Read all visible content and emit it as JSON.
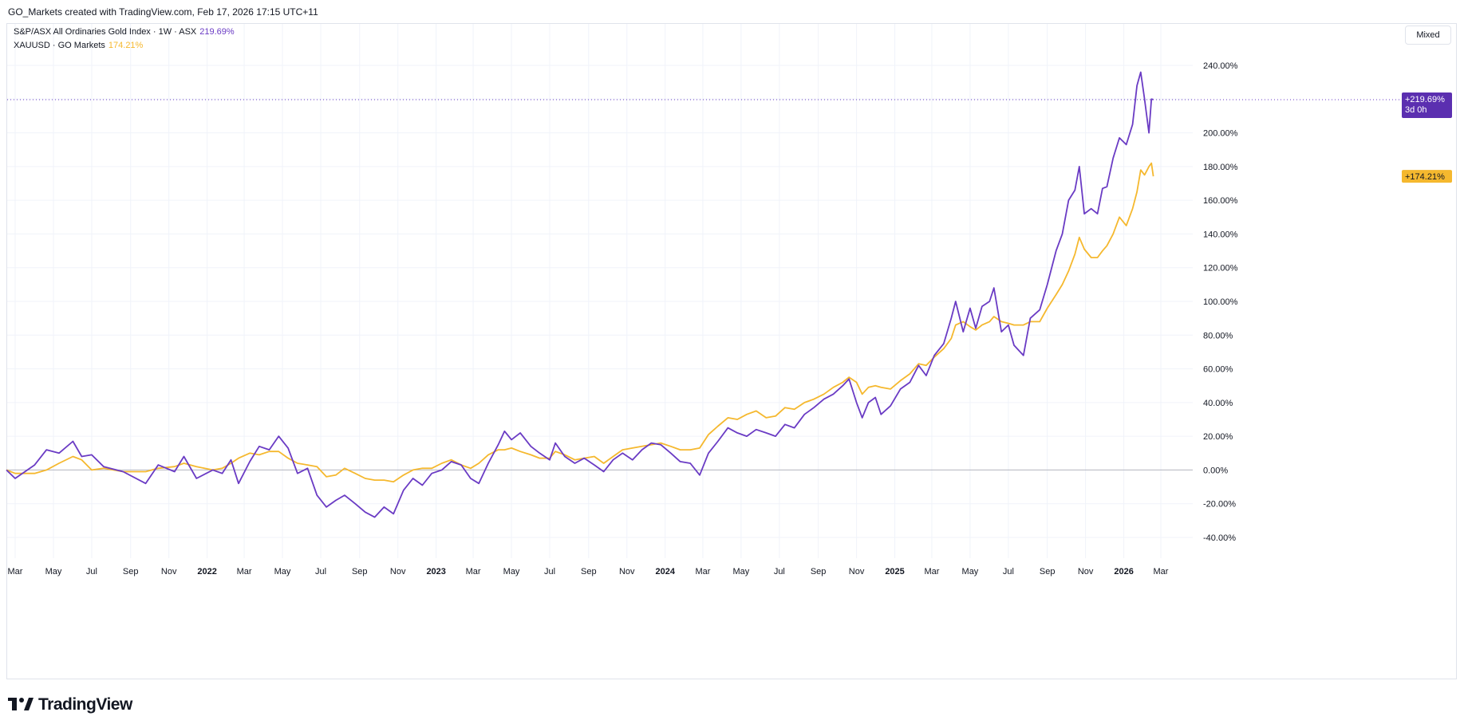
{
  "header": {
    "text": "GO_Markets created with TradingView.com, Feb 17, 2026 17:15 UTC+11"
  },
  "legend": [
    {
      "label": "S&P/ASX All Ordinaries Gold Index · 1W · ASX",
      "value": "219.69%",
      "color": "#6a3bc4"
    },
    {
      "label": "XAUUSD · GO Markets",
      "value": "174.21%",
      "color": "#f5b82e"
    }
  ],
  "scale_mode": "Mixed",
  "price_labels": {
    "gold_index": {
      "value": "+219.69%",
      "sub": "3d 0h"
    },
    "xauusd": {
      "value": "+174.21%"
    }
  },
  "brand": "TradingView",
  "chart_data": {
    "type": "line",
    "x_axis_type": "date",
    "x_ticks": [
      "Mar",
      "May",
      "Jul",
      "Sep",
      "Nov",
      "2022",
      "Mar",
      "May",
      "Jul",
      "Sep",
      "Nov",
      "2023",
      "Mar",
      "May",
      "Jul",
      "Sep",
      "Nov",
      "2024",
      "Mar",
      "May",
      "Jul",
      "Sep",
      "Nov",
      "2025",
      "Mar",
      "May",
      "Jul",
      "Sep",
      "Nov",
      "2026",
      "Mar"
    ],
    "x_tick_dates": [
      "2021-03-01",
      "2021-05-01",
      "2021-07-01",
      "2021-09-01",
      "2021-11-01",
      "2022-01-01",
      "2022-03-01",
      "2022-05-01",
      "2022-07-01",
      "2022-09-01",
      "2022-11-01",
      "2023-01-01",
      "2023-03-01",
      "2023-05-01",
      "2023-07-01",
      "2023-09-01",
      "2023-11-01",
      "2024-01-01",
      "2024-03-01",
      "2024-05-01",
      "2024-07-01",
      "2024-09-01",
      "2024-11-01",
      "2025-01-01",
      "2025-03-01",
      "2025-05-01",
      "2025-07-01",
      "2025-09-01",
      "2025-11-01",
      "2026-01-01",
      "2026-03-01"
    ],
    "bold_ticks": [
      "2022",
      "2023",
      "2024",
      "2025",
      "2026"
    ],
    "y_ticks": [
      "240.00%",
      "200.00%",
      "180.00%",
      "160.00%",
      "140.00%",
      "120.00%",
      "100.00%",
      "80.00%",
      "60.00%",
      "40.00%",
      "20.00%",
      "0.00%",
      "-20.00%",
      "-40.00%"
    ],
    "y_tick_values": [
      240,
      200,
      180,
      160,
      140,
      120,
      100,
      80,
      60,
      40,
      20,
      0,
      -20,
      -40
    ],
    "ylim": [
      -40,
      240
    ],
    "y_unit": "%",
    "grid": true,
    "legend_position": "top-left",
    "series": [
      {
        "name": "S&P/ASX All Ordinaries Gold Index · 1W · ASX",
        "color": "#6a3bc4",
        "points": [
          [
            "2021-02-15",
            0
          ],
          [
            "2021-03-01",
            -5
          ],
          [
            "2021-04-01",
            3
          ],
          [
            "2021-04-20",
            12
          ],
          [
            "2021-05-10",
            10
          ],
          [
            "2021-06-01",
            17
          ],
          [
            "2021-06-15",
            8
          ],
          [
            "2021-07-01",
            9
          ],
          [
            "2021-07-20",
            2
          ],
          [
            "2021-08-20",
            -1
          ],
          [
            "2021-09-25",
            -8
          ],
          [
            "2021-10-15",
            3
          ],
          [
            "2021-11-10",
            -1
          ],
          [
            "2021-11-25",
            8
          ],
          [
            "2021-12-15",
            -5
          ],
          [
            "2022-01-10",
            0
          ],
          [
            "2022-01-25",
            -2
          ],
          [
            "2022-02-08",
            6
          ],
          [
            "2022-02-20",
            -8
          ],
          [
            "2022-03-10",
            5
          ],
          [
            "2022-03-25",
            14
          ],
          [
            "2022-04-10",
            12
          ],
          [
            "2022-04-25",
            20
          ],
          [
            "2022-05-10",
            13
          ],
          [
            "2022-05-25",
            -2
          ],
          [
            "2022-06-10",
            1
          ],
          [
            "2022-06-25",
            -15
          ],
          [
            "2022-07-10",
            -22
          ],
          [
            "2022-07-25",
            -18
          ],
          [
            "2022-08-08",
            -15
          ],
          [
            "2022-08-25",
            -20
          ],
          [
            "2022-09-10",
            -25
          ],
          [
            "2022-09-25",
            -28
          ],
          [
            "2022-10-10",
            -22
          ],
          [
            "2022-10-25",
            -26
          ],
          [
            "2022-11-10",
            -12
          ],
          [
            "2022-11-25",
            -5
          ],
          [
            "2022-12-10",
            -9
          ],
          [
            "2022-12-25",
            -2
          ],
          [
            "2023-01-10",
            0
          ],
          [
            "2023-01-25",
            5
          ],
          [
            "2023-02-10",
            3
          ],
          [
            "2023-02-25",
            -5
          ],
          [
            "2023-03-10",
            -8
          ],
          [
            "2023-03-25",
            4
          ],
          [
            "2023-04-10",
            15
          ],
          [
            "2023-04-20",
            23
          ],
          [
            "2023-05-01",
            18
          ],
          [
            "2023-05-15",
            22
          ],
          [
            "2023-06-01",
            14
          ],
          [
            "2023-06-15",
            10
          ],
          [
            "2023-07-01",
            6
          ],
          [
            "2023-07-10",
            16
          ],
          [
            "2023-07-25",
            8
          ],
          [
            "2023-08-10",
            4
          ],
          [
            "2023-08-25",
            7
          ],
          [
            "2023-09-10",
            3
          ],
          [
            "2023-09-25",
            -1
          ],
          [
            "2023-10-10",
            6
          ],
          [
            "2023-10-25",
            10
          ],
          [
            "2023-11-10",
            6
          ],
          [
            "2023-11-25",
            12
          ],
          [
            "2023-12-10",
            16
          ],
          [
            "2023-12-25",
            15
          ],
          [
            "2024-01-10",
            10
          ],
          [
            "2024-01-25",
            5
          ],
          [
            "2024-02-10",
            4
          ],
          [
            "2024-02-25",
            -3
          ],
          [
            "2024-03-10",
            10
          ],
          [
            "2024-03-25",
            17
          ],
          [
            "2024-04-10",
            25
          ],
          [
            "2024-04-25",
            22
          ],
          [
            "2024-05-10",
            20
          ],
          [
            "2024-05-25",
            24
          ],
          [
            "2024-06-10",
            22
          ],
          [
            "2024-06-25",
            20
          ],
          [
            "2024-07-10",
            27
          ],
          [
            "2024-07-25",
            25
          ],
          [
            "2024-08-10",
            33
          ],
          [
            "2024-08-25",
            37
          ],
          [
            "2024-09-10",
            42
          ],
          [
            "2024-09-25",
            45
          ],
          [
            "2024-10-10",
            50
          ],
          [
            "2024-10-20",
            54
          ],
          [
            "2024-11-01",
            40
          ],
          [
            "2024-11-10",
            31
          ],
          [
            "2024-11-20",
            40
          ],
          [
            "2024-12-01",
            43
          ],
          [
            "2024-12-10",
            33
          ],
          [
            "2024-12-25",
            38
          ],
          [
            "2025-01-10",
            48
          ],
          [
            "2025-01-25",
            52
          ],
          [
            "2025-02-08",
            62
          ],
          [
            "2025-02-20",
            56
          ],
          [
            "2025-03-05",
            68
          ],
          [
            "2025-03-20",
            75
          ],
          [
            "2025-04-01",
            90
          ],
          [
            "2025-04-08",
            100
          ],
          [
            "2025-04-20",
            82
          ],
          [
            "2025-05-01",
            96
          ],
          [
            "2025-05-10",
            84
          ],
          [
            "2025-05-20",
            97
          ],
          [
            "2025-06-01",
            100
          ],
          [
            "2025-06-08",
            108
          ],
          [
            "2025-06-20",
            82
          ],
          [
            "2025-07-01",
            86
          ],
          [
            "2025-07-10",
            74
          ],
          [
            "2025-07-25",
            68
          ],
          [
            "2025-08-05",
            90
          ],
          [
            "2025-08-20",
            95
          ],
          [
            "2025-09-01",
            110
          ],
          [
            "2025-09-15",
            130
          ],
          [
            "2025-09-25",
            140
          ],
          [
            "2025-10-05",
            160
          ],
          [
            "2025-10-15",
            166
          ],
          [
            "2025-10-22",
            180
          ],
          [
            "2025-10-30",
            152
          ],
          [
            "2025-11-10",
            155
          ],
          [
            "2025-11-20",
            152
          ],
          [
            "2025-11-28",
            167
          ],
          [
            "2025-12-05",
            168
          ],
          [
            "2025-12-15",
            185
          ],
          [
            "2025-12-25",
            197
          ],
          [
            "2026-01-05",
            193
          ],
          [
            "2026-01-15",
            205
          ],
          [
            "2026-01-22",
            228
          ],
          [
            "2026-01-28",
            236
          ],
          [
            "2026-02-03",
            220
          ],
          [
            "2026-02-10",
            200
          ],
          [
            "2026-02-14",
            220
          ],
          [
            "2026-02-17",
            219.69
          ]
        ]
      },
      {
        "name": "XAUUSD · GO Markets",
        "color": "#f5b82e",
        "points": [
          [
            "2021-02-15",
            0
          ],
          [
            "2021-03-01",
            -2
          ],
          [
            "2021-04-01",
            -2
          ],
          [
            "2021-04-20",
            0
          ],
          [
            "2021-05-10",
            4
          ],
          [
            "2021-06-01",
            8
          ],
          [
            "2021-06-15",
            6
          ],
          [
            "2021-07-01",
            0
          ],
          [
            "2021-07-20",
            1
          ],
          [
            "2021-08-20",
            -1
          ],
          [
            "2021-09-25",
            -1
          ],
          [
            "2021-10-15",
            1
          ],
          [
            "2021-11-10",
            2
          ],
          [
            "2021-11-25",
            4
          ],
          [
            "2021-12-15",
            2
          ],
          [
            "2022-01-10",
            0
          ],
          [
            "2022-01-25",
            1
          ],
          [
            "2022-02-08",
            4
          ],
          [
            "2022-02-20",
            7
          ],
          [
            "2022-03-10",
            10
          ],
          [
            "2022-03-25",
            9
          ],
          [
            "2022-04-10",
            11
          ],
          [
            "2022-04-25",
            11
          ],
          [
            "2022-05-10",
            7
          ],
          [
            "2022-05-25",
            4
          ],
          [
            "2022-06-10",
            3
          ],
          [
            "2022-06-25",
            2
          ],
          [
            "2022-07-10",
            -4
          ],
          [
            "2022-07-25",
            -3
          ],
          [
            "2022-08-08",
            1
          ],
          [
            "2022-08-25",
            -2
          ],
          [
            "2022-09-10",
            -5
          ],
          [
            "2022-09-25",
            -6
          ],
          [
            "2022-10-10",
            -6
          ],
          [
            "2022-10-25",
            -7
          ],
          [
            "2022-11-10",
            -3
          ],
          [
            "2022-11-25",
            0
          ],
          [
            "2022-12-10",
            1
          ],
          [
            "2022-12-25",
            1
          ],
          [
            "2023-01-10",
            4
          ],
          [
            "2023-01-25",
            6
          ],
          [
            "2023-02-10",
            3
          ],
          [
            "2023-02-25",
            1
          ],
          [
            "2023-03-10",
            4
          ],
          [
            "2023-03-25",
            9
          ],
          [
            "2023-04-10",
            12
          ],
          [
            "2023-04-20",
            12
          ],
          [
            "2023-05-01",
            13
          ],
          [
            "2023-05-15",
            11
          ],
          [
            "2023-06-01",
            9
          ],
          [
            "2023-06-15",
            7
          ],
          [
            "2023-07-01",
            7
          ],
          [
            "2023-07-10",
            11
          ],
          [
            "2023-07-25",
            9
          ],
          [
            "2023-08-10",
            6
          ],
          [
            "2023-08-25",
            7
          ],
          [
            "2023-09-10",
            8
          ],
          [
            "2023-09-25",
            4
          ],
          [
            "2023-10-10",
            8
          ],
          [
            "2023-10-25",
            12
          ],
          [
            "2023-11-10",
            13
          ],
          [
            "2023-11-25",
            14
          ],
          [
            "2023-12-10",
            15
          ],
          [
            "2023-12-25",
            16
          ],
          [
            "2024-01-10",
            14
          ],
          [
            "2024-01-25",
            12
          ],
          [
            "2024-02-10",
            12
          ],
          [
            "2024-02-25",
            13
          ],
          [
            "2024-03-10",
            21
          ],
          [
            "2024-03-25",
            26
          ],
          [
            "2024-04-10",
            31
          ],
          [
            "2024-04-25",
            30
          ],
          [
            "2024-05-10",
            33
          ],
          [
            "2024-05-25",
            35
          ],
          [
            "2024-06-10",
            31
          ],
          [
            "2024-06-25",
            32
          ],
          [
            "2024-07-10",
            37
          ],
          [
            "2024-07-25",
            36
          ],
          [
            "2024-08-10",
            40
          ],
          [
            "2024-08-25",
            42
          ],
          [
            "2024-09-10",
            45
          ],
          [
            "2024-09-25",
            49
          ],
          [
            "2024-10-10",
            52
          ],
          [
            "2024-10-20",
            55
          ],
          [
            "2024-11-01",
            52
          ],
          [
            "2024-11-10",
            45
          ],
          [
            "2024-11-20",
            49
          ],
          [
            "2024-12-01",
            50
          ],
          [
            "2024-12-10",
            49
          ],
          [
            "2024-12-25",
            48
          ],
          [
            "2025-01-10",
            53
          ],
          [
            "2025-01-25",
            57
          ],
          [
            "2025-02-08",
            63
          ],
          [
            "2025-02-20",
            62
          ],
          [
            "2025-03-05",
            67
          ],
          [
            "2025-03-20",
            72
          ],
          [
            "2025-04-01",
            78
          ],
          [
            "2025-04-08",
            86
          ],
          [
            "2025-04-20",
            88
          ],
          [
            "2025-05-01",
            85
          ],
          [
            "2025-05-10",
            83
          ],
          [
            "2025-05-20",
            86
          ],
          [
            "2025-06-01",
            88
          ],
          [
            "2025-06-08",
            91
          ],
          [
            "2025-06-20",
            88
          ],
          [
            "2025-07-01",
            87
          ],
          [
            "2025-07-10",
            86
          ],
          [
            "2025-07-25",
            86
          ],
          [
            "2025-08-05",
            88
          ],
          [
            "2025-08-20",
            88
          ],
          [
            "2025-09-01",
            96
          ],
          [
            "2025-09-15",
            104
          ],
          [
            "2025-09-25",
            110
          ],
          [
            "2025-10-05",
            118
          ],
          [
            "2025-10-15",
            128
          ],
          [
            "2025-10-22",
            138
          ],
          [
            "2025-10-30",
            131
          ],
          [
            "2025-11-10",
            126
          ],
          [
            "2025-11-20",
            126
          ],
          [
            "2025-11-28",
            130
          ],
          [
            "2025-12-05",
            133
          ],
          [
            "2025-12-15",
            140
          ],
          [
            "2025-12-25",
            150
          ],
          [
            "2026-01-05",
            145
          ],
          [
            "2026-01-15",
            155
          ],
          [
            "2026-01-22",
            165
          ],
          [
            "2026-01-28",
            178
          ],
          [
            "2026-02-03",
            175
          ],
          [
            "2026-02-10",
            180
          ],
          [
            "2026-02-14",
            182
          ],
          [
            "2026-02-17",
            174.21
          ]
        ]
      }
    ]
  }
}
